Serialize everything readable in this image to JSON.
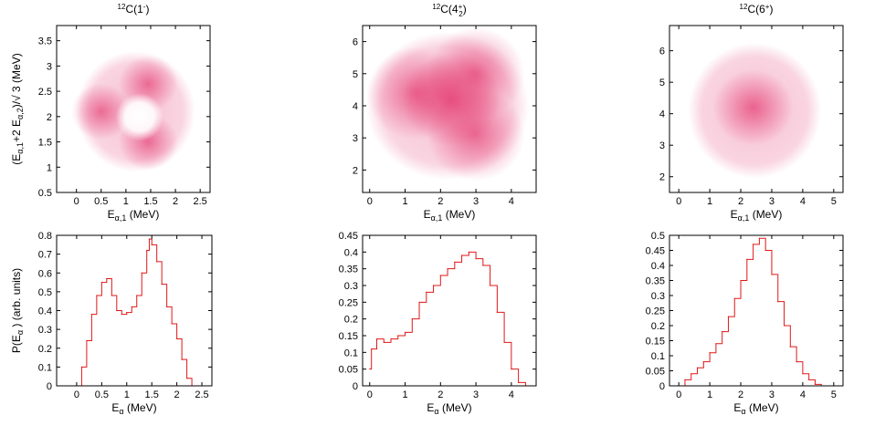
{
  "colors": {
    "density": "#e0185a",
    "histogram": "#e01818",
    "axis": "#000000"
  },
  "chart_data": [
    {
      "type": "heatmap",
      "title": "12C(1-)",
      "title_parts": {
        "mass": "12",
        "element": "C(1",
        "sup": "-",
        "close": ")"
      },
      "xlabel": "E_{α,1} (MeV)",
      "xlabel_parts": {
        "base": "E",
        "sub": "α,1",
        "rest": " (MeV)"
      },
      "ylabel": "(E_{α,1}+2 E_{α,2})/√3 (MeV)",
      "ylabel_parts": {
        "p1": "(E",
        "sub1": "α,1",
        "p2": "+2 E",
        "sub2": "α,2",
        "p3": ")/√ 3 (MeV)"
      },
      "xlim": [
        -0.4,
        2.7
      ],
      "ylim": [
        0.5,
        3.8
      ],
      "xticks": [
        "0",
        "0.5",
        "1",
        "1.5",
        "2",
        "2.5"
      ],
      "yticks": [
        "0.5",
        "1",
        "1.5",
        "2",
        "2.5",
        "3",
        "3.5"
      ],
      "center": [
        1.2,
        2.1
      ],
      "outer_radius": 1.2,
      "inner_radius": 0.22,
      "hotspots": [
        [
          0.5,
          2.1
        ],
        [
          1.45,
          2.65
        ],
        [
          1.45,
          1.5
        ]
      ]
    },
    {
      "type": "heatmap",
      "title": "12C(4+2)",
      "title_parts": {
        "mass": "12",
        "element": "C(4",
        "sup": "+",
        "sub": "2",
        "close": ")"
      },
      "xlabel": "E_{α,1} (MeV)",
      "xlabel_parts": {
        "base": "E",
        "sub": "α,1",
        "rest": " (MeV)"
      },
      "xlim": [
        -0.2,
        4.7
      ],
      "ylim": [
        1.3,
        6.5
      ],
      "xticks": [
        "0",
        "1",
        "2",
        "3",
        "4"
      ],
      "yticks": [
        "2",
        "3",
        "4",
        "5",
        "6"
      ],
      "center": [
        2.2,
        4.0
      ],
      "outer_radius": 2.3,
      "inner_radius": 0,
      "hotspots": [
        [
          2.3,
          4.2
        ],
        [
          3.0,
          3.1
        ],
        [
          1.3,
          4.4
        ],
        [
          3.0,
          5.0
        ]
      ]
    },
    {
      "type": "heatmap",
      "title": "12C(6+)",
      "title_parts": {
        "mass": "12",
        "element": "C(6",
        "sup": "+",
        "close": ")"
      },
      "xlabel": "E_{α,1} (MeV)",
      "xlabel_parts": {
        "base": "E",
        "sub": "α,1",
        "rest": " (MeV)"
      },
      "xlim": [
        -0.3,
        5.3
      ],
      "ylim": [
        1.5,
        6.8
      ],
      "xticks": [
        "0",
        "1",
        "2",
        "3",
        "4",
        "5"
      ],
      "yticks": [
        "2",
        "3",
        "4",
        "5",
        "6"
      ],
      "center": [
        2.45,
        4.1
      ],
      "outer_radius": 2.15,
      "inner_radius": 0,
      "hotspots": [
        [
          2.4,
          4.2
        ]
      ]
    },
    {
      "type": "line",
      "xlabel": "E_α (MeV)",
      "xlabel_parts": {
        "base": "E",
        "sub": "α",
        "rest": " (MeV)"
      },
      "ylabel": "P(E_α ) (arb. units)",
      "ylabel_parts": {
        "p1": "P(E",
        "sub1": "α",
        "p2": " ) (arb. units)"
      },
      "xlim": [
        -0.4,
        2.7
      ],
      "ylim": [
        0,
        0.8
      ],
      "xticks": [
        "0",
        "0.5",
        "1",
        "1.5",
        "2",
        "2.5"
      ],
      "yticks": [
        "0",
        "0.1",
        "0.2",
        "0.3",
        "0.4",
        "0.5",
        "0.6",
        "0.7",
        "0.8"
      ],
      "x": [
        0,
        0.1,
        0.2,
        0.3,
        0.4,
        0.5,
        0.6,
        0.7,
        0.8,
        0.9,
        1.0,
        1.1,
        1.2,
        1.3,
        1.4,
        1.45,
        1.5,
        1.6,
        1.7,
        1.8,
        1.9,
        2.0,
        2.1,
        2.2,
        2.3
      ],
      "y": [
        0,
        0.1,
        0.24,
        0.38,
        0.48,
        0.55,
        0.57,
        0.48,
        0.4,
        0.38,
        0.39,
        0.42,
        0.48,
        0.6,
        0.72,
        0.78,
        0.75,
        0.66,
        0.54,
        0.42,
        0.33,
        0.25,
        0.14,
        0.04,
        0
      ]
    },
    {
      "type": "line",
      "xlabel": "E_α (MeV)",
      "xlabel_parts": {
        "base": "E",
        "sub": "α",
        "rest": " (MeV)"
      },
      "xlim": [
        -0.2,
        4.7
      ],
      "ylim": [
        0,
        0.45
      ],
      "xticks": [
        "0",
        "1",
        "2",
        "3",
        "4"
      ],
      "yticks": [
        "0",
        "0.05",
        "0.1",
        "0.15",
        "0.2",
        "0.25",
        "0.3",
        "0.35",
        "0.4",
        "0.45"
      ],
      "x": [
        0,
        0.05,
        0.2,
        0.4,
        0.6,
        0.8,
        1.0,
        1.2,
        1.4,
        1.6,
        1.8,
        2.0,
        2.2,
        2.4,
        2.6,
        2.8,
        3.0,
        3.2,
        3.4,
        3.6,
        3.8,
        4.0,
        4.2,
        4.4
      ],
      "y": [
        0.05,
        0.11,
        0.14,
        0.13,
        0.14,
        0.15,
        0.16,
        0.2,
        0.25,
        0.28,
        0.3,
        0.33,
        0.35,
        0.37,
        0.39,
        0.4,
        0.38,
        0.36,
        0.3,
        0.22,
        0.13,
        0.05,
        0.01,
        0
      ]
    },
    {
      "type": "line",
      "xlabel": "E_α (MeV)",
      "xlabel_parts": {
        "base": "E",
        "sub": "α",
        "rest": " (MeV)"
      },
      "xlim": [
        -0.3,
        5.3
      ],
      "ylim": [
        0,
        0.5
      ],
      "xticks": [
        "0",
        "1",
        "2",
        "3",
        "4",
        "5"
      ],
      "yticks": [
        "0",
        "0.05",
        "0.1",
        "0.15",
        "0.2",
        "0.25",
        "0.3",
        "0.35",
        "0.4",
        "0.45",
        "0.5"
      ],
      "x": [
        0,
        0.2,
        0.4,
        0.6,
        0.8,
        1.0,
        1.2,
        1.4,
        1.6,
        1.8,
        2.0,
        2.2,
        2.4,
        2.6,
        2.8,
        3.0,
        3.2,
        3.4,
        3.6,
        3.8,
        4.0,
        4.2,
        4.4,
        4.6
      ],
      "y": [
        0,
        0.02,
        0.04,
        0.06,
        0.08,
        0.11,
        0.14,
        0.18,
        0.23,
        0.29,
        0.35,
        0.42,
        0.47,
        0.49,
        0.45,
        0.37,
        0.28,
        0.2,
        0.13,
        0.08,
        0.04,
        0.02,
        0.005,
        0
      ]
    }
  ]
}
